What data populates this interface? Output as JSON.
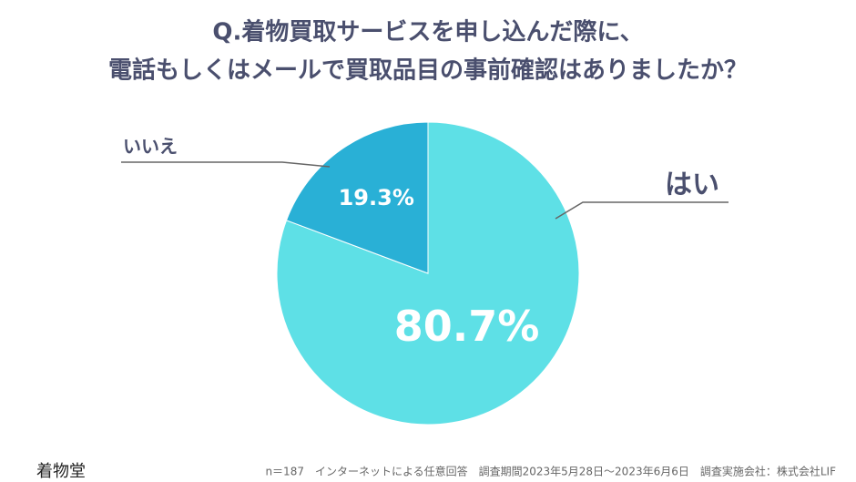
{
  "chart_data": {
    "type": "pie",
    "title": [
      "Q.着物買取サービスを申し込んだ際に、",
      "電話もしくはメールで買取品目の事前確認はありましたか？"
    ],
    "categories": [
      "はい",
      "いいえ"
    ],
    "values": [
      80.7,
      19.3
    ],
    "value_labels": [
      "80.7%",
      "19.3%"
    ],
    "colors": [
      "#5ee0e6",
      "#29b0d6"
    ]
  },
  "footer": {
    "logo": "着物堂",
    "note": "n＝187　インターネットによる任意回答　調査期間2023年5月28日〜2023年6月6日　調査実施会社：株式会社LIF"
  }
}
